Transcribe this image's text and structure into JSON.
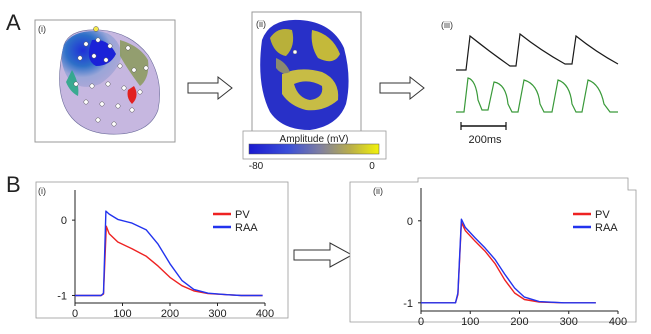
{
  "panel_a": {
    "label": "A",
    "sub_i": "(i)",
    "sub_ii": "(ii)",
    "sub_iii": "(iii)",
    "colorbar": {
      "title": "Amplitude (mV)",
      "min_label": "-80",
      "max_label": "0",
      "colors": [
        "#1a1ad0",
        "#3b4fd8",
        "#8080a0",
        "#b9ae4a",
        "#f2f20a"
      ]
    },
    "scale_bar_label": "200ms",
    "trace_colors": {
      "top": "#1a1a1a",
      "bottom": "#3a9a3a"
    },
    "arrow_icon": "right-outline-arrow-icon"
  },
  "panel_b": {
    "label": "B",
    "sub_i": "(i)",
    "sub_ii": "(ii)",
    "arrow_icon": "right-outline-arrow-icon"
  },
  "chart_data": [
    {
      "type": "line",
      "panel": "B(i)",
      "xlim": [
        0,
        400
      ],
      "ylim": [
        -1.1,
        0.4
      ],
      "x_ticks": [
        "0",
        "100",
        "200",
        "300",
        "400"
      ],
      "y_ticks": [
        "0",
        "-1"
      ],
      "legend_position": "right",
      "series": [
        {
          "name": "PV",
          "color": "#ee2222",
          "points": [
            [
              0,
              -1
            ],
            [
              55,
              -1
            ],
            [
              60,
              -0.98
            ],
            [
              66,
              -0.08
            ],
            [
              72,
              -0.18
            ],
            [
              90,
              -0.29
            ],
            [
              120,
              -0.38
            ],
            [
              150,
              -0.48
            ],
            [
              175,
              -0.61
            ],
            [
              200,
              -0.76
            ],
            [
              225,
              -0.87
            ],
            [
              250,
              -0.94
            ],
            [
              280,
              -0.975
            ],
            [
              320,
              -0.99
            ],
            [
              350,
              -1
            ],
            [
              395,
              -1
            ]
          ]
        },
        {
          "name": "RAA",
          "color": "#2233ee",
          "points": [
            [
              0,
              -1
            ],
            [
              55,
              -1
            ],
            [
              60,
              -0.97
            ],
            [
              65,
              0.12
            ],
            [
              72,
              0.08
            ],
            [
              90,
              0.01
            ],
            [
              120,
              -0.04
            ],
            [
              150,
              -0.13
            ],
            [
              175,
              -0.32
            ],
            [
              200,
              -0.58
            ],
            [
              225,
              -0.8
            ],
            [
              250,
              -0.92
            ],
            [
              280,
              -0.97
            ],
            [
              320,
              -0.99
            ],
            [
              350,
              -1
            ],
            [
              395,
              -1
            ]
          ]
        }
      ]
    },
    {
      "type": "line",
      "panel": "B(ii)",
      "xlim": [
        0,
        400
      ],
      "ylim": [
        -1.1,
        0.4
      ],
      "x_ticks": [
        "0",
        "100",
        "200",
        "300",
        "400"
      ],
      "y_ticks": [
        "0",
        "-1"
      ],
      "legend_position": "right",
      "series": [
        {
          "name": "PV",
          "color": "#ee2222",
          "points": [
            [
              0,
              -1
            ],
            [
              70,
              -1
            ],
            [
              75,
              -0.9
            ],
            [
              82,
              -0.02
            ],
            [
              90,
              -0.12
            ],
            [
              110,
              -0.25
            ],
            [
              130,
              -0.37
            ],
            [
              150,
              -0.52
            ],
            [
              170,
              -0.72
            ],
            [
              190,
              -0.88
            ],
            [
              210,
              -0.96
            ],
            [
              240,
              -0.99
            ],
            [
              290,
              -1
            ],
            [
              355,
              -1
            ]
          ]
        },
        {
          "name": "RAA",
          "color": "#2233ee",
          "points": [
            [
              0,
              -1
            ],
            [
              70,
              -1
            ],
            [
              75,
              -0.88
            ],
            [
              82,
              0.02
            ],
            [
              90,
              -0.08
            ],
            [
              110,
              -0.21
            ],
            [
              130,
              -0.33
            ],
            [
              150,
              -0.47
            ],
            [
              170,
              -0.65
            ],
            [
              190,
              -0.82
            ],
            [
              210,
              -0.93
            ],
            [
              240,
              -0.985
            ],
            [
              290,
              -1
            ],
            [
              355,
              -1
            ]
          ]
        }
      ]
    }
  ]
}
